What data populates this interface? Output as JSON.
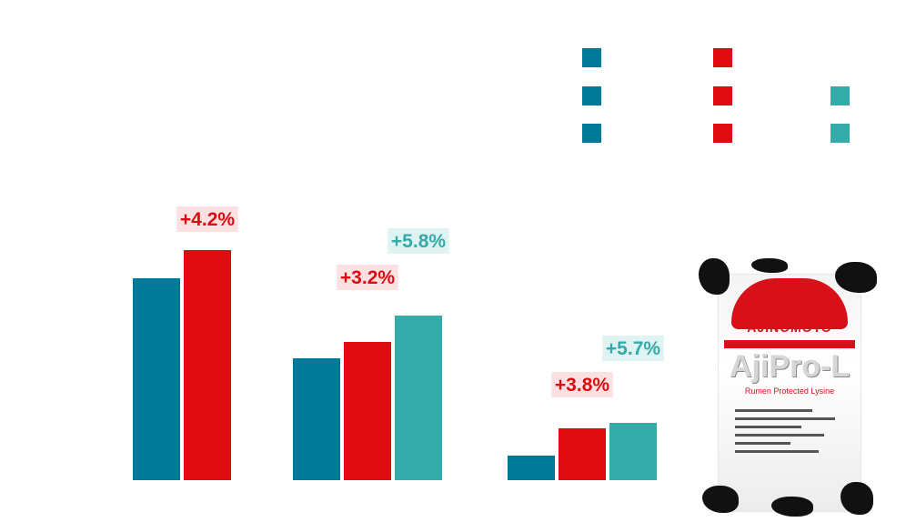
{
  "chart_data": {
    "type": "bar",
    "title": "",
    "xlabel": "",
    "ylabel": "",
    "groups": [
      {
        "bars": [
          {
            "series": 0,
            "value": 222
          },
          {
            "series": 1,
            "value": 253
          }
        ],
        "labels": [
          {
            "series": 1,
            "text": "+4.2%"
          }
        ]
      },
      {
        "bars": [
          {
            "series": 0,
            "value": 134
          },
          {
            "series": 1,
            "value": 152
          },
          {
            "series": 2,
            "value": 181
          }
        ],
        "labels": [
          {
            "series": 2,
            "text": "+5.8%"
          },
          {
            "series": 1,
            "text": "+3.2%"
          }
        ]
      },
      {
        "bars": [
          {
            "series": 0,
            "value": 27
          },
          {
            "series": 1,
            "value": 57
          },
          {
            "series": 2,
            "value": 63
          }
        ],
        "labels": [
          {
            "series": 2,
            "text": "+5.7%"
          },
          {
            "series": 1,
            "text": "+3.8%"
          }
        ]
      }
    ],
    "series": [
      {
        "color": "#007897"
      },
      {
        "color": "#e00b10"
      },
      {
        "color": "#33aba8"
      }
    ],
    "ylim": [
      0,
      300
    ],
    "legend": "top-right",
    "legend_markers": [
      {
        "series": 0,
        "row": 0
      },
      {
        "series": 0,
        "row": 1
      },
      {
        "series": 0,
        "row": 2
      },
      {
        "series": 1,
        "row": 0
      },
      {
        "series": 1,
        "row": 1
      },
      {
        "series": 1,
        "row": 2
      },
      {
        "series": 2,
        "row": 1
      },
      {
        "series": 2,
        "row": 2
      }
    ],
    "label_backgrounds": {
      "1": "#fbe1e2",
      "2": "#dff3f3"
    },
    "label_text_colors": {
      "1": "#e00b10",
      "2": "#33aba8"
    }
  },
  "product_image": {
    "brand": "AJINOMOTO",
    "name": "AjiPro-L",
    "subtitle": "Rumen Protected Lysine"
  }
}
